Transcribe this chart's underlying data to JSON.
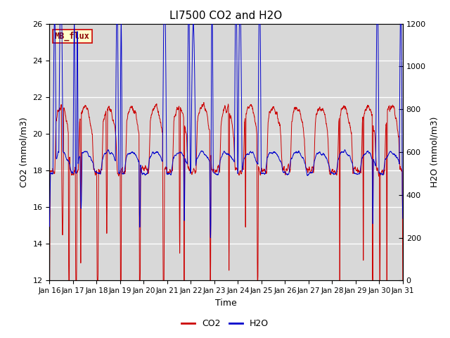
{
  "title": "LI7500 CO2 and H2O",
  "xlabel": "Time",
  "ylabel_left": "CO2 (mmol/m3)",
  "ylabel_right": "H2O (mmol/m3)",
  "co2_ylim": [
    12,
    26
  ],
  "h2o_ylim": [
    0,
    1200
  ],
  "co2_yticks": [
    12,
    14,
    16,
    18,
    20,
    22,
    24,
    26
  ],
  "h2o_yticks": [
    0,
    200,
    400,
    600,
    800,
    1000,
    1200
  ],
  "x_tick_labels": [
    "Jan 16",
    "Jan 17",
    "Jan 18",
    "Jan 19",
    "Jan 20",
    "Jan 21",
    "Jan 22",
    "Jan 23",
    "Jan 24",
    "Jan 25",
    "Jan 26",
    "Jan 27",
    "Jan 28",
    "Jan 29",
    "Jan 30",
    "Jan 31"
  ],
  "co2_color": "#cc0000",
  "h2o_color": "#0000cc",
  "bg_color": "#ffffff",
  "plot_bg_color": "#d8d8d8",
  "grid_color": "#ffffff",
  "annotation_text": "MB_flux",
  "annotation_bg": "#ffffcc",
  "annotation_border": "#cc0000",
  "legend_co2": "CO2",
  "legend_h2o": "H2O",
  "title_fontsize": 11,
  "axis_fontsize": 9,
  "tick_fontsize": 8
}
